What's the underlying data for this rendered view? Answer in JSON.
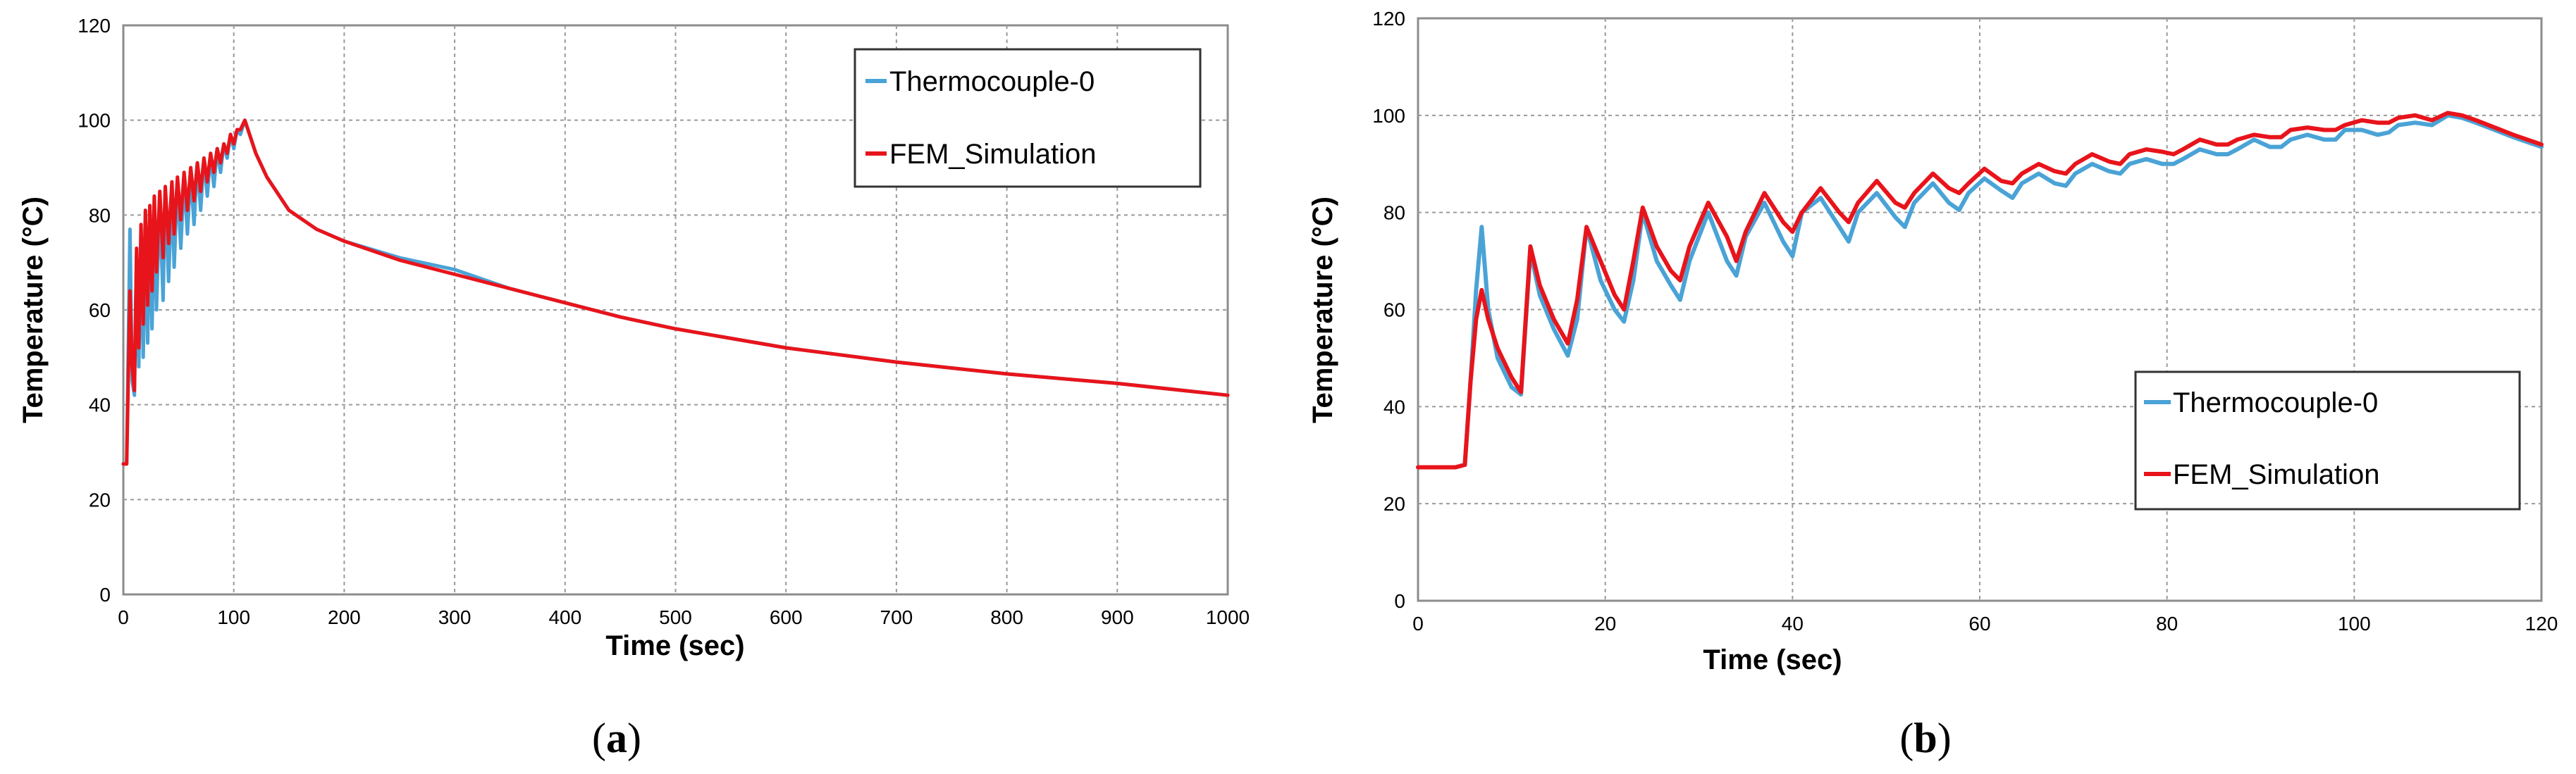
{
  "colors": {
    "thermocouple": "#4aa3d6",
    "fem": "#e8141b",
    "grid": "#9a9a9a",
    "axis": "#8c8c8c"
  },
  "chart_data": [
    {
      "type": "line",
      "panel_label": "(a)",
      "panel_letter": "a",
      "xlabel": "Time (sec)",
      "ylabel": "Temperature (°C)",
      "xlim": [
        0,
        1000
      ],
      "ylim": [
        0,
        120
      ],
      "xticks": [
        0,
        100,
        200,
        300,
        400,
        500,
        600,
        700,
        800,
        900,
        1000
      ],
      "yticks": [
        0,
        20,
        40,
        60,
        80,
        100,
        120
      ],
      "grid": true,
      "legend_position": "top-right",
      "series": [
        {
          "name": "Thermocouple-0",
          "color_key": "thermocouple",
          "x": [
            0,
            3,
            6,
            8,
            10,
            12,
            14,
            16,
            18,
            20,
            22,
            24,
            26,
            28,
            30,
            33,
            36,
            38,
            41,
            44,
            46,
            49,
            52,
            55,
            58,
            61,
            64,
            67,
            70,
            73,
            76,
            79,
            82,
            85,
            88,
            91,
            94,
            97,
            100,
            103,
            106,
            110,
            120,
            130,
            150,
            175,
            200,
            250,
            300,
            350,
            400,
            450,
            500,
            600,
            700,
            800,
            900,
            1000
          ],
          "y": [
            27.5,
            27.5,
            77,
            45,
            42,
            72,
            48,
            75,
            50,
            78,
            53,
            80,
            56,
            82,
            60,
            83,
            62,
            85,
            66,
            86,
            69,
            87,
            73,
            88,
            76,
            89,
            78,
            91,
            81,
            92,
            84,
            93,
            86,
            94,
            89,
            95,
            92,
            97,
            94,
            98,
            97,
            100,
            93,
            88,
            81,
            77,
            74.5,
            71,
            68.5,
            64.5,
            61.5,
            58.5,
            56,
            52,
            49,
            46.5,
            44.5,
            42
          ]
        },
        {
          "name": "FEM_Simulation",
          "color_key": "fem",
          "x": [
            0,
            3,
            6,
            8,
            10,
            12,
            14,
            16,
            18,
            20,
            22,
            24,
            26,
            28,
            30,
            33,
            36,
            38,
            41,
            44,
            46,
            49,
            52,
            55,
            58,
            61,
            64,
            67,
            70,
            73,
            76,
            79,
            82,
            85,
            88,
            91,
            94,
            97,
            100,
            103,
            106,
            110,
            120,
            130,
            150,
            175,
            200,
            250,
            300,
            350,
            400,
            450,
            500,
            600,
            700,
            800,
            900,
            1000
          ],
          "y": [
            27.5,
            27.5,
            64,
            48,
            43,
            73,
            52,
            78,
            57,
            81,
            61,
            82,
            64,
            84,
            68,
            85,
            71,
            86,
            74,
            87,
            76,
            88,
            79,
            89,
            81,
            90,
            83,
            91,
            85,
            92,
            87,
            93,
            89,
            94,
            91,
            95,
            93,
            97,
            95,
            98,
            98,
            100,
            93,
            88,
            81,
            77,
            74.5,
            70.5,
            67.5,
            64.5,
            61.5,
            58.5,
            56,
            52,
            49,
            46.5,
            44.5,
            42
          ]
        }
      ]
    },
    {
      "type": "line",
      "panel_label": "(b)",
      "panel_letter": "b",
      "xlabel": "Time (sec)",
      "ylabel": "Temperature (°C)",
      "xlim": [
        0,
        120
      ],
      "ylim": [
        0,
        120
      ],
      "xticks": [
        0,
        20,
        40,
        60,
        80,
        100,
        120
      ],
      "yticks": [
        0,
        20,
        40,
        60,
        80,
        100,
        120
      ],
      "grid": true,
      "legend_position": "bottom-right",
      "series": [
        {
          "name": "Thermocouple-0",
          "color_key": "thermocouple",
          "x": [
            0,
            2,
            4,
            5,
            5.6,
            6.2,
            6.8,
            7.5,
            8.5,
            10,
            11,
            12,
            13,
            14.5,
            16,
            17,
            18,
            19.5,
            21,
            22,
            23,
            24,
            25.5,
            27,
            28,
            29,
            31,
            33,
            34,
            35,
            37,
            39,
            40,
            41,
            43,
            45,
            46,
            47,
            49,
            51,
            52,
            53,
            55,
            56.7,
            57.8,
            58.8,
            60.5,
            62.3,
            63.5,
            64.5,
            66.3,
            68,
            69.2,
            70.2,
            72,
            73.8,
            75,
            76,
            77.8,
            79.5,
            80.7,
            81.7,
            83.5,
            85.3,
            86.5,
            87.5,
            89.3,
            91,
            92.2,
            93.2,
            95,
            96.8,
            98,
            99,
            100.8,
            102.5,
            103.7,
            104.7,
            106.5,
            108.3,
            110,
            111.5,
            113,
            115,
            117,
            120
          ],
          "y": [
            27.5,
            27.5,
            27.5,
            28,
            45,
            64,
            77,
            60,
            50,
            44,
            42.5,
            72,
            63,
            56,
            50.5,
            58,
            77,
            66,
            60,
            57.5,
            66,
            80,
            70,
            65,
            62,
            70,
            80,
            70,
            67,
            75,
            82,
            74,
            71,
            80,
            83,
            77,
            74,
            80,
            84,
            79,
            77,
            82,
            86,
            82,
            80.5,
            84,
            87,
            84.5,
            83,
            86,
            88,
            86,
            85.5,
            88,
            90,
            88.5,
            88,
            90,
            91,
            90,
            90,
            91,
            93,
            92,
            92,
            93,
            95,
            93.5,
            93.5,
            95,
            96,
            95,
            95,
            97,
            97,
            96,
            96.5,
            98,
            98.5,
            98,
            100,
            99.5,
            98.5,
            97,
            95.5,
            93.5
          ]
        },
        {
          "name": "FEM_Simulation",
          "color_key": "fem",
          "x": [
            0,
            2,
            4,
            5,
            5.6,
            6.2,
            6.8,
            7.5,
            8.5,
            10,
            11,
            12,
            13,
            14.5,
            16,
            17,
            18,
            19.5,
            21,
            22,
            23,
            24,
            25.5,
            27,
            28,
            29,
            31,
            33,
            34,
            35,
            37,
            39,
            40,
            41,
            43,
            45,
            46,
            47,
            49,
            51,
            52,
            53,
            55,
            56.7,
            57.8,
            58.8,
            60.5,
            62.3,
            63.5,
            64.5,
            66.3,
            68,
            69.2,
            70.2,
            72,
            73.8,
            75,
            76,
            77.8,
            79.5,
            80.7,
            81.7,
            83.5,
            85.3,
            86.5,
            87.5,
            89.3,
            91,
            92.2,
            93.2,
            95,
            96.8,
            98,
            99,
            100.8,
            102.5,
            103.7,
            104.7,
            106.5,
            108.3,
            110,
            111.5,
            113,
            115,
            117,
            120
          ],
          "y": [
            27.5,
            27.5,
            27.5,
            28,
            45,
            58,
            64,
            58,
            52,
            46,
            43,
            73,
            65,
            58,
            53,
            62,
            77,
            70,
            63,
            60,
            70,
            81,
            73,
            68,
            66,
            73,
            82,
            75,
            70,
            76,
            84,
            78,
            76,
            80,
            85,
            80,
            78,
            82,
            86.5,
            82,
            81,
            84,
            88,
            85,
            84,
            86,
            89,
            86.5,
            86,
            88,
            90,
            88.5,
            88,
            90,
            92,
            90.5,
            90,
            92,
            93,
            92.5,
            92,
            93,
            95,
            94,
            94,
            95,
            96,
            95.5,
            95.5,
            97,
            97.5,
            97,
            97,
            98,
            99,
            98.5,
            98.5,
            99.5,
            100,
            99,
            100.5,
            100,
            99,
            97.5,
            96,
            94
          ]
        }
      ]
    }
  ]
}
